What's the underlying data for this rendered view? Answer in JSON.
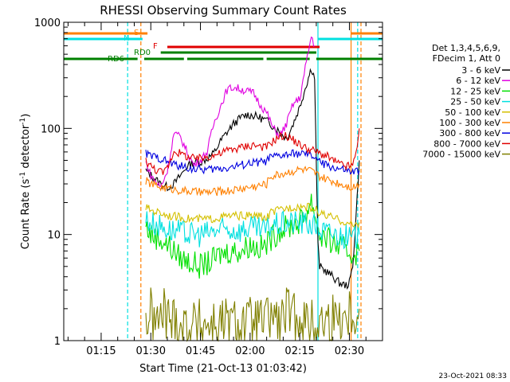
{
  "chart_data": {
    "type": "line",
    "title": "RHESSI Observing Summary Count Rates",
    "xlabel": "Start Time (21-Oct-13 01:03:42)",
    "ylabel": "Count Rate (s",
    "ylabel_sup": "-1",
    "ylabel_tail": " detector",
    "ylabel_sup2": "-1",
    "ylabel_end": ")",
    "yscale": "log",
    "ylim": [
      1,
      1000
    ],
    "xlim_minutes": [
      63.7,
      160
    ],
    "yticks": [
      "1",
      "10",
      "100",
      "1000"
    ],
    "xticks": [
      {
        "m": 75,
        "label": "01:15"
      },
      {
        "m": 90,
        "label": "01:30"
      },
      {
        "m": 105,
        "label": "01:45"
      },
      {
        "m": 120,
        "label": "02:00"
      },
      {
        "m": 135,
        "label": "02:15"
      },
      {
        "m": 150,
        "label": "02:30"
      }
    ],
    "legend_header": [
      "Det 1,3,4,5,6,9,",
      "FDecim 1, Att 0"
    ],
    "series": [
      {
        "name": "3 - 6 keV",
        "color": "#000000",
        "points": [
          [
            88.5,
            40
          ],
          [
            91,
            34
          ],
          [
            93,
            30
          ],
          [
            95,
            28
          ],
          [
            97,
            30
          ],
          [
            99,
            36
          ],
          [
            101,
            44
          ],
          [
            103,
            48
          ],
          [
            105,
            48
          ],
          [
            107,
            52
          ],
          [
            109,
            58
          ],
          [
            111,
            75
          ],
          [
            113,
            92
          ],
          [
            115,
            110
          ],
          [
            117,
            125
          ],
          [
            119,
            135
          ],
          [
            121,
            132
          ],
          [
            123,
            126
          ],
          [
            125,
            118
          ],
          [
            127,
            105
          ],
          [
            129,
            92
          ],
          [
            131,
            80
          ],
          [
            133,
            110
          ],
          [
            135,
            160
          ],
          [
            137,
            260
          ],
          [
            138.5,
            370
          ],
          [
            139.5,
            300
          ],
          [
            140.5,
            8
          ],
          [
            141,
            5
          ],
          [
            143,
            4.5
          ],
          [
            145,
            4
          ],
          [
            147,
            3.5
          ],
          [
            149,
            3.3
          ],
          [
            150,
            3.5
          ],
          [
            151,
            5
          ],
          [
            152,
            15
          ],
          [
            153,
            50
          ]
        ]
      },
      {
        "name": "6 - 12 keV",
        "color": "#e000e0",
        "points": [
          [
            88.5,
            48
          ],
          [
            90,
            36
          ],
          [
            92,
            30
          ],
          [
            93,
            28
          ],
          [
            95,
            40
          ],
          [
            97,
            90
          ],
          [
            99,
            82
          ],
          [
            101,
            60
          ],
          [
            103,
            45
          ],
          [
            105,
            50
          ],
          [
            107,
            60
          ],
          [
            109,
            110
          ],
          [
            111,
            160
          ],
          [
            113,
            230
          ],
          [
            115,
            245
          ],
          [
            117,
            235
          ],
          [
            119,
            225
          ],
          [
            121,
            215
          ],
          [
            123,
            170
          ],
          [
            125,
            140
          ],
          [
            127,
            100
          ],
          [
            129,
            85
          ],
          [
            131,
            110
          ],
          [
            133,
            170
          ],
          [
            135,
            190
          ],
          [
            137,
            420
          ],
          [
            138.5,
            740
          ],
          [
            139.5,
            600
          ]
        ]
      },
      {
        "name": "12 - 25 keV",
        "color": "#00e000",
        "points": [
          [
            88.5,
            12
          ],
          [
            90,
            10
          ],
          [
            93,
            9
          ],
          [
            96,
            7.5
          ],
          [
            99,
            6
          ],
          [
            102,
            5.5
          ],
          [
            105,
            5
          ],
          [
            108,
            5.5
          ],
          [
            111,
            6.5
          ],
          [
            114,
            7
          ],
          [
            117,
            7
          ],
          [
            120,
            8
          ],
          [
            123,
            7.5
          ],
          [
            125,
            8
          ],
          [
            126,
            9
          ],
          [
            129,
            11
          ],
          [
            132,
            12
          ],
          [
            135,
            13
          ],
          [
            137,
            16
          ],
          [
            138.5,
            21
          ],
          [
            140,
            14
          ],
          [
            141,
            10
          ],
          [
            143,
            9
          ],
          [
            146,
            8
          ],
          [
            149,
            7
          ],
          [
            151,
            6.5
          ],
          [
            153,
            7
          ]
        ]
      },
      {
        "name": "25 - 50 keV",
        "color": "#00e0e0",
        "points": [
          [
            88.5,
            14
          ],
          [
            90,
            13
          ],
          [
            93,
            12
          ],
          [
            96,
            11
          ],
          [
            99,
            10.5
          ],
          [
            102,
            10
          ],
          [
            105,
            10
          ],
          [
            108,
            10.5
          ],
          [
            111,
            11
          ],
          [
            114,
            11
          ],
          [
            117,
            11
          ],
          [
            120,
            11.5
          ],
          [
            123,
            11
          ],
          [
            125,
            11
          ],
          [
            126,
            12
          ],
          [
            129,
            12.5
          ],
          [
            132,
            13
          ],
          [
            135,
            13
          ],
          [
            138,
            12.5
          ],
          [
            140,
            12
          ],
          [
            141,
            11
          ],
          [
            143,
            10.5
          ],
          [
            146,
            10
          ],
          [
            149,
            9.5
          ],
          [
            151,
            9
          ],
          [
            153,
            10
          ]
        ]
      },
      {
        "name": "50 - 100 keV",
        "color": "#d4c000",
        "points": [
          [
            88.5,
            18
          ],
          [
            90,
            17
          ],
          [
            93,
            16
          ],
          [
            96,
            15
          ],
          [
            99,
            14.5
          ],
          [
            102,
            14
          ],
          [
            105,
            14
          ],
          [
            108,
            14
          ],
          [
            111,
            14.5
          ],
          [
            114,
            15
          ],
          [
            117,
            15
          ],
          [
            120,
            15
          ],
          [
            123,
            15
          ],
          [
            125,
            14
          ],
          [
            126,
            16
          ],
          [
            129,
            17
          ],
          [
            132,
            18
          ],
          [
            135,
            18.5
          ],
          [
            138,
            18
          ],
          [
            140,
            17
          ],
          [
            141,
            16
          ],
          [
            143,
            15
          ],
          [
            146,
            14
          ],
          [
            149,
            13
          ],
          [
            151,
            12
          ],
          [
            153,
            13
          ]
        ]
      },
      {
        "name": "100 - 300 keV",
        "color": "#ff8000",
        "points": [
          [
            88.5,
            32
          ],
          [
            90,
            30
          ],
          [
            93,
            28
          ],
          [
            96,
            27
          ],
          [
            99,
            26
          ],
          [
            102,
            25.5
          ],
          [
            105,
            25
          ],
          [
            108,
            25
          ],
          [
            111,
            25.5
          ],
          [
            114,
            26
          ],
          [
            117,
            27
          ],
          [
            120,
            28
          ],
          [
            123,
            29
          ],
          [
            125,
            30
          ],
          [
            126,
            35
          ],
          [
            129,
            37
          ],
          [
            132,
            39
          ],
          [
            135,
            41
          ],
          [
            138,
            40
          ],
          [
            140,
            37
          ],
          [
            141,
            35
          ],
          [
            143,
            33
          ],
          [
            146,
            31
          ],
          [
            149,
            29
          ],
          [
            151,
            28
          ],
          [
            153,
            30
          ]
        ]
      },
      {
        "name": "300 - 800 keV",
        "color": "#0000e0",
        "points": [
          [
            88.5,
            58
          ],
          [
            90,
            55
          ],
          [
            93,
            52
          ],
          [
            96,
            47
          ],
          [
            99,
            44
          ],
          [
            102,
            42
          ],
          [
            105,
            41
          ],
          [
            108,
            41
          ],
          [
            111,
            42
          ],
          [
            114,
            43
          ],
          [
            117,
            45
          ],
          [
            120,
            47
          ],
          [
            123,
            48
          ],
          [
            125,
            49
          ],
          [
            126,
            53
          ],
          [
            129,
            55
          ],
          [
            132,
            57
          ],
          [
            135,
            58
          ],
          [
            138,
            56
          ],
          [
            140,
            53
          ],
          [
            141,
            48
          ],
          [
            143,
            45
          ],
          [
            146,
            42
          ],
          [
            149,
            40
          ],
          [
            151,
            38
          ],
          [
            153,
            40
          ]
        ]
      },
      {
        "name": "800 - 7000 keV",
        "color": "#e00000",
        "points": [
          [
            88.5,
            50
          ],
          [
            90,
            44
          ],
          [
            92,
            40
          ],
          [
            94,
            38
          ],
          [
            96,
            50
          ],
          [
            97,
            62
          ],
          [
            99,
            58
          ],
          [
            101,
            54
          ],
          [
            103,
            52
          ],
          [
            105,
            52
          ],
          [
            107,
            54
          ],
          [
            109,
            56
          ],
          [
            111,
            58
          ],
          [
            113,
            62
          ],
          [
            115,
            64
          ],
          [
            117,
            66
          ],
          [
            119,
            68
          ],
          [
            121,
            70
          ],
          [
            123,
            68
          ],
          [
            125,
            66
          ],
          [
            126,
            72
          ],
          [
            128,
            80
          ],
          [
            129,
            84
          ],
          [
            131,
            85
          ],
          [
            133,
            78
          ],
          [
            135,
            70
          ],
          [
            137,
            65
          ],
          [
            139,
            62
          ],
          [
            140,
            60
          ],
          [
            141,
            58
          ],
          [
            143,
            55
          ],
          [
            145,
            50
          ],
          [
            147,
            46
          ],
          [
            149,
            44
          ],
          [
            151,
            44
          ],
          [
            152,
            60
          ],
          [
            153,
            100
          ]
        ]
      },
      {
        "name": "7000 - 15000 keV",
        "color": "#808000",
        "points": [
          [
            88.5,
            1.5
          ],
          [
            90,
            1.8
          ],
          [
            92,
            1.4
          ],
          [
            94,
            1.9
          ],
          [
            96,
            1.5
          ],
          [
            98,
            1.7
          ],
          [
            99,
            1.4
          ],
          [
            125,
            1.5
          ],
          [
            127,
            1.8
          ],
          [
            129,
            1.4
          ],
          [
            131,
            1.9
          ],
          [
            133,
            1.6
          ],
          [
            135,
            1.8
          ],
          [
            137,
            1.5
          ],
          [
            139,
            1.4
          ],
          [
            153,
            2
          ]
        ]
      }
    ],
    "status_bars": [
      {
        "label": "S",
        "color": "#ff8000",
        "segments": [
          [
            63.7,
            89
          ],
          [
            150.5,
            160
          ]
        ]
      },
      {
        "label": "N",
        "color": "#00e0e0",
        "segments": [
          [
            63.7,
            87.5
          ],
          [
            140.5,
            160
          ]
        ]
      },
      {
        "label": "F",
        "color": "#e00000",
        "segments": [
          [
            95,
            141
          ]
        ]
      },
      {
        "label": "RD0",
        "color": "#008000",
        "segments": [
          [
            93,
            140
          ]
        ]
      },
      {
        "label": "RD6",
        "color": "#008000",
        "segments": [
          [
            63.7,
            86
          ],
          [
            88,
            100
          ],
          [
            101,
            124
          ],
          [
            125,
            138
          ],
          [
            140,
            160
          ]
        ]
      }
    ],
    "vertical_lines": [
      {
        "m": 83,
        "color": "#00e0e0",
        "style": "dash"
      },
      {
        "m": 87,
        "color": "#ff8000",
        "style": "dash"
      },
      {
        "m": 140.5,
        "color": "#00e0e0",
        "style": "solid"
      },
      {
        "m": 150.5,
        "color": "#ff8000",
        "style": "solid"
      },
      {
        "m": 152.5,
        "color": "#00e0e0",
        "style": "dash"
      },
      {
        "m": 153.5,
        "color": "#ff8000",
        "style": "dash"
      }
    ],
    "footer_date": "23-Oct-2021 08:33"
  }
}
